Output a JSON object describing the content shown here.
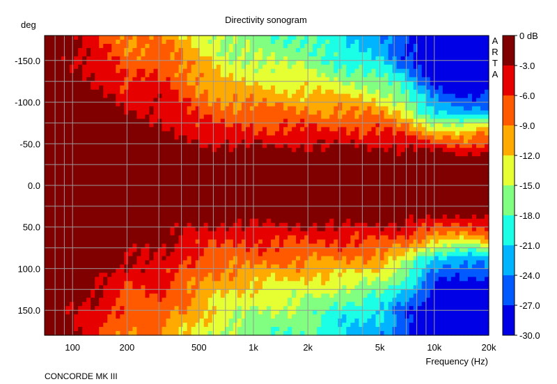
{
  "chart_data": {
    "type": "heatmap",
    "title": "Directivity sonogram",
    "ylabel": "deg",
    "xlabel": "Frequency (Hz)",
    "footer": "CONCORDE MK III",
    "watermark": [
      "A",
      "R",
      "T",
      "A"
    ],
    "x_scale": "log",
    "xlim": [
      70,
      20000
    ],
    "ylim": [
      -180,
      180
    ],
    "y_inverted": true,
    "grid": true,
    "x_ticks": [
      {
        "value": 100,
        "label": "100"
      },
      {
        "value": 200,
        "label": "200"
      },
      {
        "value": 500,
        "label": "500"
      },
      {
        "value": 1000,
        "label": "1k"
      },
      {
        "value": 2000,
        "label": "2k"
      },
      {
        "value": 5000,
        "label": "5k"
      },
      {
        "value": 10000,
        "label": "10k"
      },
      {
        "value": 20000,
        "label": "20k"
      }
    ],
    "y_ticks": [
      {
        "value": -150,
        "label": "-150.0"
      },
      {
        "value": -100,
        "label": "-100.0"
      },
      {
        "value": -50,
        "label": "-50.0"
      },
      {
        "value": 0,
        "label": "0.0"
      },
      {
        "value": 50,
        "label": "50.0"
      },
      {
        "value": 100,
        "label": "100.0"
      },
      {
        "value": 150,
        "label": "150.0"
      }
    ],
    "colorbar": {
      "levels": [
        0,
        -3,
        -6,
        -9,
        -12,
        -15,
        -18,
        -21,
        -24,
        -27,
        -30
      ],
      "labels": [
        "0 dB",
        "-3.0",
        "-6.0",
        "-9.0",
        "-12.0",
        "-15.0",
        "-18.0",
        "-21.0",
        "-24.0",
        "-27.0",
        "-30.0"
      ],
      "colors": [
        "#800000",
        "#e60000",
        "#ff5a00",
        "#ffaa00",
        "#e6ff33",
        "#80ff80",
        "#1affe6",
        "#00b4ff",
        "#005aff",
        "#0000e6"
      ]
    },
    "contours": {
      "angles": [
        0,
        30,
        60,
        90,
        120,
        150,
        180
      ],
      "frequencies": [
        70,
        150,
        200,
        300,
        500,
        700,
        1000,
        2000,
        3000,
        5000,
        7000,
        10000,
        15000,
        20000
      ],
      "attenuation_db": [
        [
          0,
          0,
          0,
          0,
          0,
          0,
          0,
          0,
          0,
          0,
          0,
          0,
          0,
          0
        ],
        [
          0,
          0,
          0,
          0,
          0,
          0,
          0,
          0,
          0,
          0,
          0,
          0,
          -1,
          -1
        ],
        [
          0,
          0,
          -1,
          -2,
          -4,
          -5,
          -5,
          -5,
          -5,
          -5,
          -6,
          -9,
          -10,
          -8
        ],
        [
          0,
          -1,
          -3,
          -3,
          -7,
          -8,
          -8,
          -9,
          -9,
          -10,
          -14,
          -22,
          -24,
          -22
        ],
        [
          0,
          -3,
          -6,
          -5,
          -9,
          -11,
          -12,
          -13,
          -14,
          -16,
          -20,
          -27,
          -29,
          -29
        ],
        [
          0,
          -5,
          -8,
          -7,
          -11,
          -14,
          -15,
          -16,
          -19,
          -21,
          -26,
          -30,
          -30,
          -30
        ],
        [
          0,
          -6,
          -9,
          -9,
          -13,
          -16,
          -17,
          -18,
          -21,
          -23,
          -28,
          -30,
          -30,
          -30
        ]
      ]
    }
  }
}
